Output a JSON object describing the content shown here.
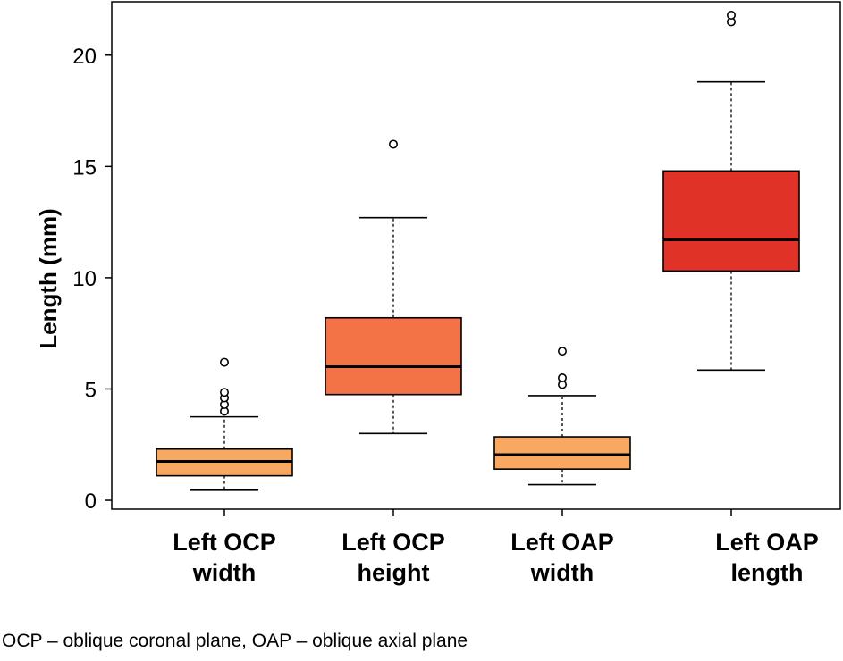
{
  "chart_data": {
    "type": "box",
    "ylabel": "Length (mm)",
    "xlabel": "",
    "ylim": [
      -0.4,
      22.4
    ],
    "yticks": [
      0,
      5,
      10,
      15,
      20
    ],
    "grid": false,
    "categories": [
      {
        "label_lines": [
          "Left OCP",
          "width"
        ],
        "color": "#F9A862",
        "whisker_low": 0.45,
        "q1": 1.1,
        "median": 1.75,
        "q3": 2.3,
        "whisker_high": 3.75,
        "outliers": [
          4.0,
          4.3,
          4.6,
          4.85,
          6.2
        ]
      },
      {
        "label_lines": [
          "Left OCP",
          "height"
        ],
        "color": "#F37246",
        "whisker_low": 3.0,
        "q1": 4.75,
        "median": 6.0,
        "q3": 8.2,
        "whisker_high": 12.7,
        "outliers": [
          16.0
        ]
      },
      {
        "label_lines": [
          "Left OAP",
          "width"
        ],
        "color": "#F9A862",
        "whisker_low": 0.7,
        "q1": 1.4,
        "median": 2.05,
        "q3": 2.85,
        "whisker_high": 4.7,
        "outliers": [
          5.2,
          5.5,
          6.7
        ]
      },
      {
        "label_lines": [
          "Left OAP",
          "length"
        ],
        "color": "#E03226",
        "whisker_low": 5.85,
        "q1": 10.3,
        "median": 11.7,
        "q3": 14.8,
        "whisker_high": 18.8,
        "outliers": [
          21.5,
          21.8
        ]
      }
    ]
  },
  "footnote": "OCP – oblique coronal plane, OAP – oblique axial plane"
}
